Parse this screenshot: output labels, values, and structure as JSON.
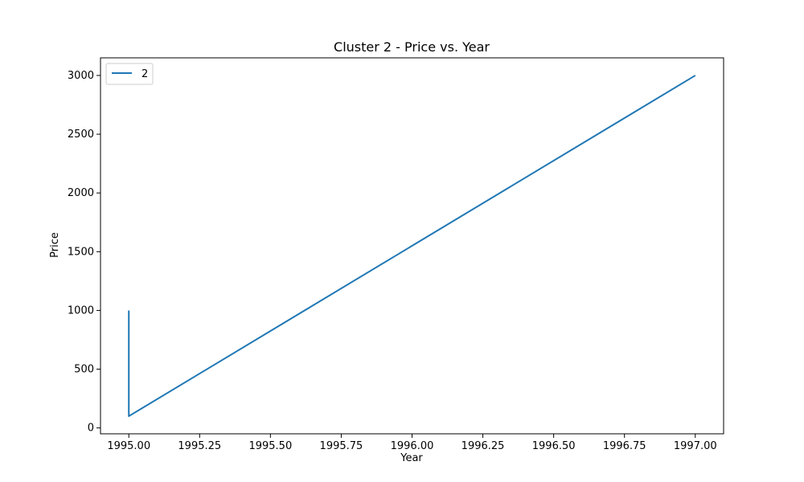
{
  "chart_data": {
    "type": "line",
    "title": "Cluster 2 - Price vs. Year",
    "xlabel": "Year",
    "ylabel": "Price",
    "x_ticks": [
      "1995.00",
      "1995.25",
      "1995.50",
      "1995.75",
      "1996.00",
      "1996.25",
      "1996.50",
      "1996.75",
      "1997.00"
    ],
    "y_ticks": [
      "0",
      "500",
      "1000",
      "1500",
      "2000",
      "2500",
      "3000"
    ],
    "xlim": [
      1994.9,
      1997.1
    ],
    "ylim": [
      -50,
      3150
    ],
    "grid": false,
    "legend_position": "top-left",
    "series": [
      {
        "name": "2",
        "color": "#1f77b4",
        "points": [
          {
            "x": 1995.0,
            "y": 1000
          },
          {
            "x": 1995.0,
            "y": 100
          },
          {
            "x": 1997.0,
            "y": 3000
          }
        ]
      }
    ]
  }
}
